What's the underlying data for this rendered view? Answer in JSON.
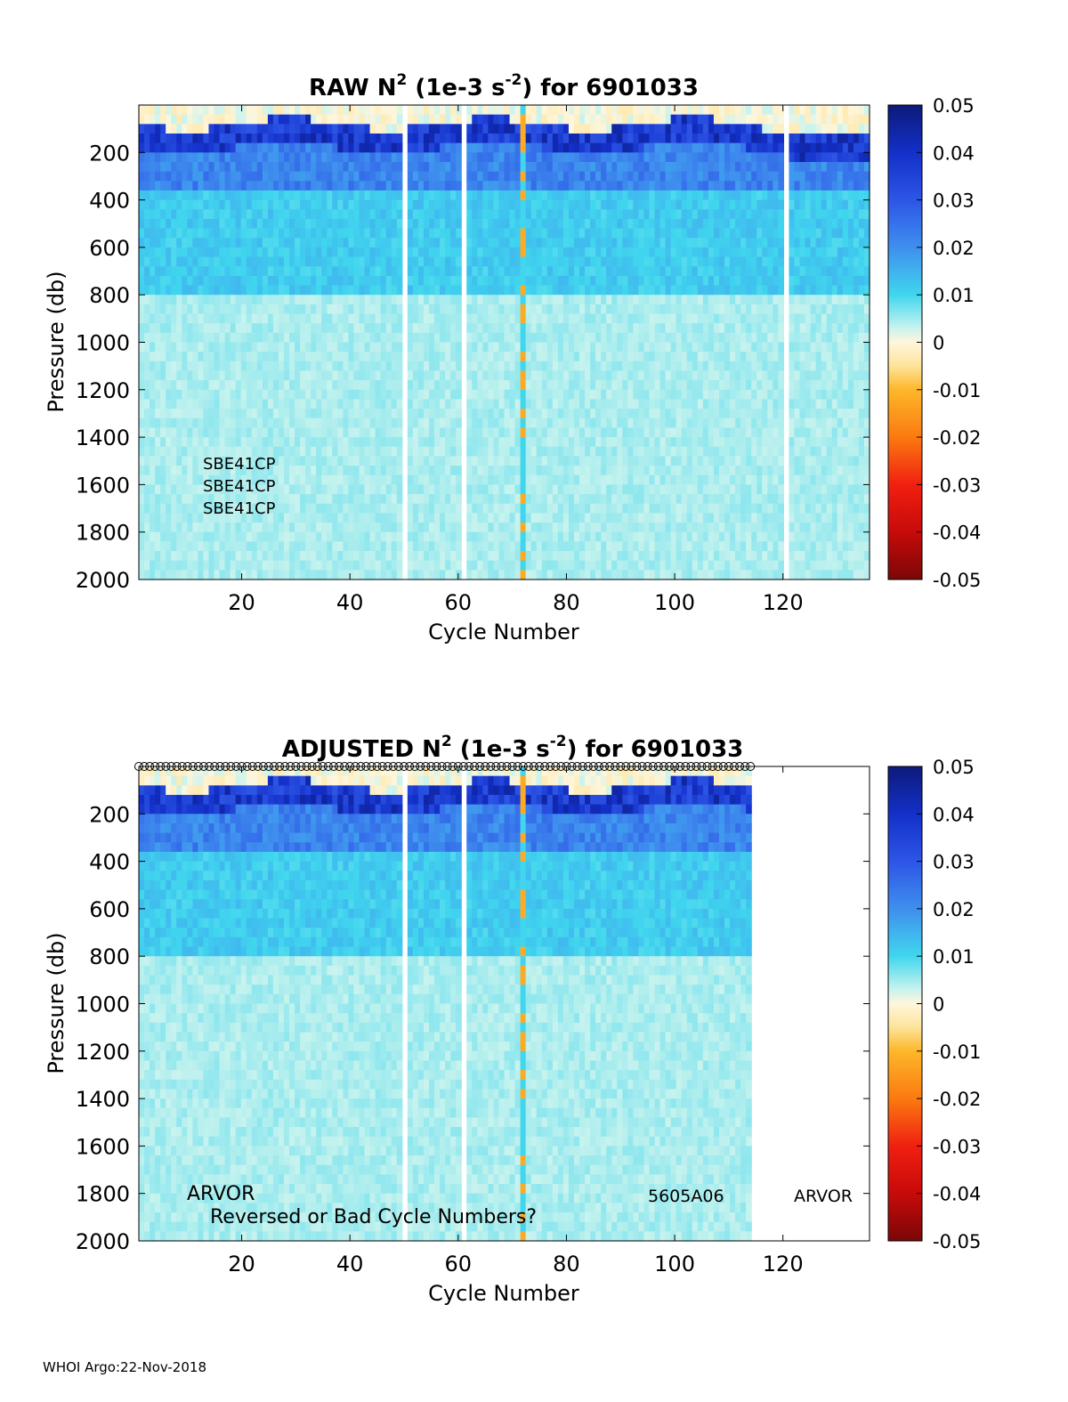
{
  "footer": "WHOI Argo:22-Nov-2018",
  "colorbar": {
    "ticks": [
      "0.05",
      "0.04",
      "0.03",
      "0.02",
      "0.01",
      "0",
      "-0.01",
      "-0.02",
      "-0.03",
      "-0.04",
      "-0.05"
    ],
    "range": [
      -0.05,
      0.05
    ]
  },
  "chart_data": [
    {
      "type": "heatmap",
      "title_main": "RAW N",
      "title_sup1": "2",
      "title_mid": " (1e-3 s",
      "title_sup2": "-2",
      "title_end": ") for 6901033",
      "xlabel": "Cycle Number",
      "ylabel": "Pressure (db)",
      "xlim": [
        1,
        136
      ],
      "ylim": [
        0,
        2000
      ],
      "xticks": [
        "20",
        "40",
        "60",
        "80",
        "100",
        "120"
      ],
      "yticks": [
        "200",
        "400",
        "600",
        "800",
        "1000",
        "1200",
        "1400",
        "1600",
        "1800",
        "2000"
      ],
      "last_cycle": 136,
      "gap_cycles": [
        50,
        61,
        121
      ],
      "annotations": [
        "SBE41CP",
        "SBE41CP",
        "SBE41CP"
      ]
    },
    {
      "type": "heatmap",
      "title_main": "ADJUSTED N",
      "title_sup1": "2",
      "title_mid": " (1e-3 s",
      "title_sup2": "-2",
      "title_end": ") for 6901033",
      "xlabel": "Cycle Number",
      "ylabel": "Pressure (db)",
      "xlim": [
        1,
        136
      ],
      "ylim": [
        0,
        2000
      ],
      "xticks": [
        "20",
        "40",
        "60",
        "80",
        "100",
        "120"
      ],
      "yticks": [
        "200",
        "400",
        "600",
        "800",
        "1000",
        "1200",
        "1400",
        "1600",
        "1800",
        "2000"
      ],
      "last_cycle": 114,
      "gap_cycles": [
        50,
        61
      ],
      "annotations": [
        "ARVOR",
        "Reversed or Bad Cycle Numbers?",
        "5605A06",
        "ARVOR"
      ]
    }
  ]
}
